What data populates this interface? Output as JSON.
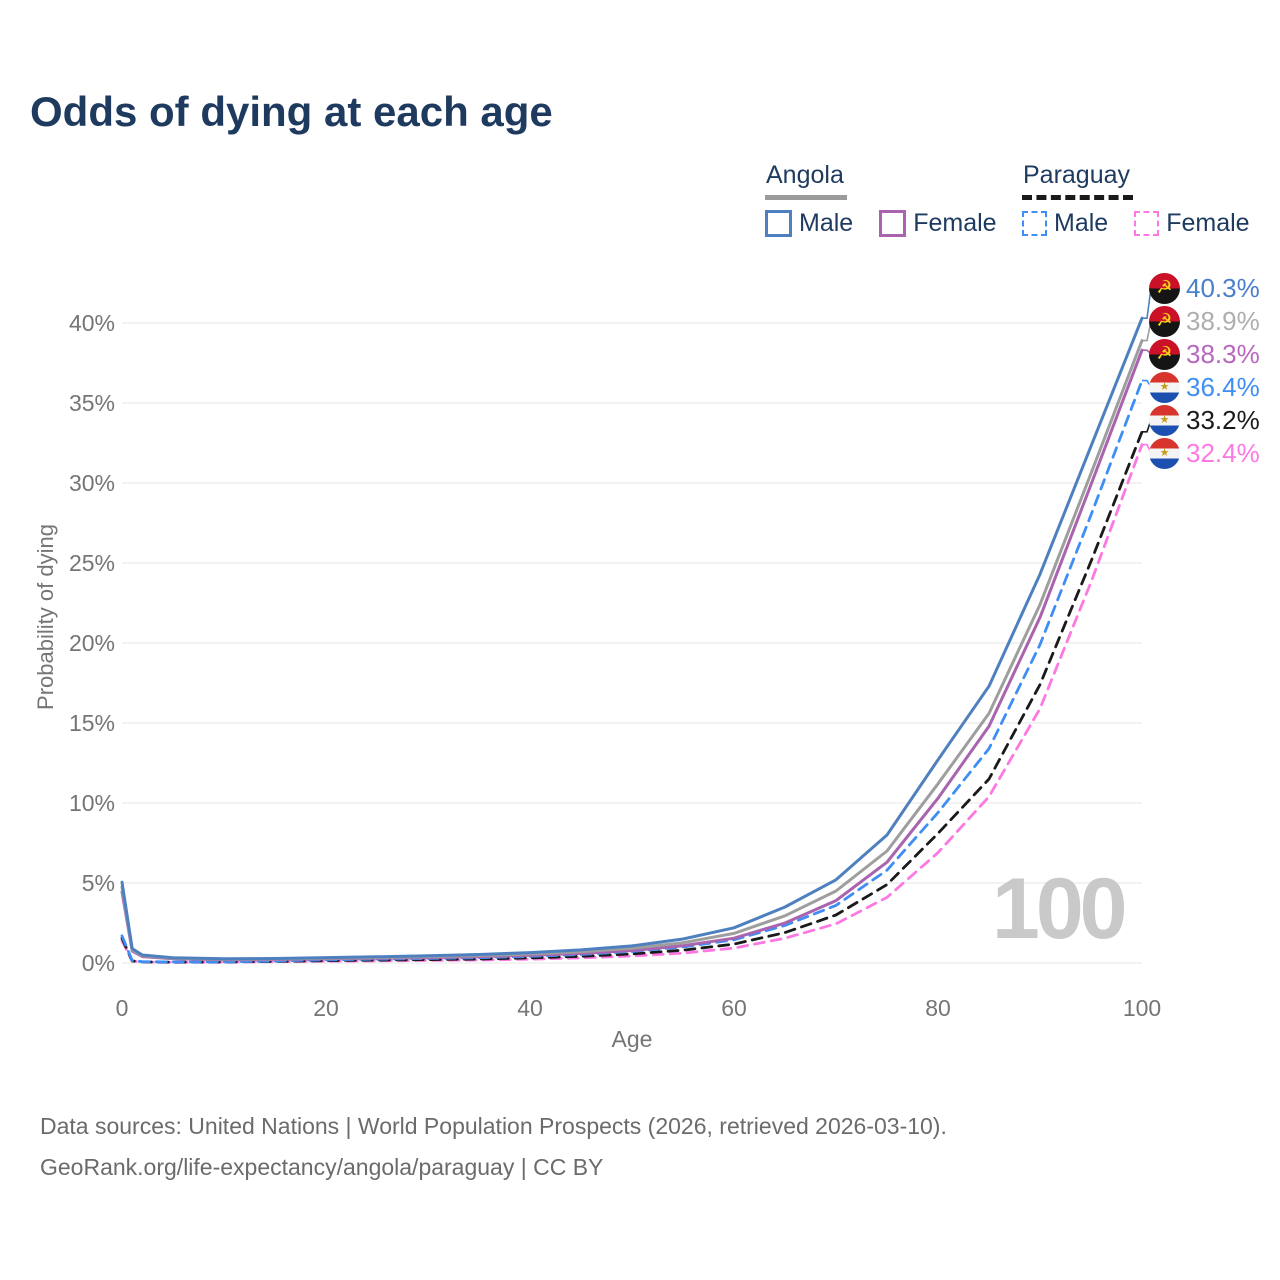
{
  "title": "Odds of dying at each age",
  "watermark": "100",
  "icons": {
    "angola_emblem": "☭",
    "paraguay_emblem": "★"
  },
  "legend": {
    "groups": [
      {
        "label": "Angola",
        "underline_style": "solid",
        "underline_color": "#9b9b9b",
        "items": [
          {
            "label": "Male",
            "color": "#4e80c0",
            "dashed": false
          },
          {
            "label": "Female",
            "color": "#aa63ae",
            "dashed": false
          }
        ]
      },
      {
        "label": "Paraguay",
        "underline_style": "dashed",
        "underline_color": "#1a1a1a",
        "items": [
          {
            "label": "Male",
            "color": "#3e8ef5",
            "dashed": true
          },
          {
            "label": "Female",
            "color": "#fc78e2",
            "dashed": true
          }
        ]
      }
    ]
  },
  "chart_data": {
    "type": "line",
    "title": "Odds of dying at each age",
    "xlabel": "Age",
    "ylabel": "Probability of dying",
    "xlim": [
      0,
      100
    ],
    "ylim": [
      0,
      42
    ],
    "x_ticks": [
      0,
      20,
      40,
      60,
      80,
      100
    ],
    "y_ticks": [
      0,
      5,
      10,
      15,
      20,
      25,
      30,
      35,
      40
    ],
    "y_tick_suffix": "%",
    "grid": "horizontal",
    "legend_position": "top-right",
    "x": [
      0,
      1,
      2,
      5,
      10,
      15,
      20,
      25,
      30,
      35,
      40,
      45,
      50,
      55,
      60,
      65,
      70,
      75,
      80,
      85,
      90,
      95,
      100
    ],
    "series": [
      {
        "name": "Angola — Male",
        "country": "angola",
        "sex": "male",
        "color": "#4e80c0",
        "label_color": "#4a7fc9",
        "dashed": false,
        "end_label": "40.3%",
        "values": [
          5.05,
          0.9,
          0.5,
          0.33,
          0.26,
          0.28,
          0.34,
          0.39,
          0.45,
          0.53,
          0.65,
          0.82,
          1.07,
          1.5,
          2.2,
          3.5,
          5.2,
          8.0,
          12.7,
          17.3,
          24.3,
          32.3,
          40.3
        ]
      },
      {
        "name": "Angola — Both sexes",
        "country": "angola",
        "sex": "both",
        "color": "#9e9e9e",
        "label_color": "#aeaeae",
        "dashed": false,
        "end_label": "38.9%",
        "values": [
          4.75,
          0.8,
          0.45,
          0.3,
          0.23,
          0.25,
          0.3,
          0.34,
          0.39,
          0.46,
          0.56,
          0.7,
          0.92,
          1.27,
          1.85,
          2.95,
          4.5,
          7.0,
          11.2,
          15.6,
          22.4,
          30.6,
          38.9
        ]
      },
      {
        "name": "Angola — Female",
        "country": "angola",
        "sex": "female",
        "color": "#aa63ae",
        "label_color": "#b767bd",
        "dashed": false,
        "end_label": "38.3%",
        "values": [
          4.45,
          0.75,
          0.4,
          0.27,
          0.2,
          0.22,
          0.26,
          0.3,
          0.34,
          0.4,
          0.48,
          0.6,
          0.78,
          1.08,
          1.55,
          2.5,
          3.9,
          6.3,
          10.3,
          14.8,
          21.6,
          29.9,
          38.3
        ]
      },
      {
        "name": "Paraguay — Male",
        "country": "paraguay",
        "sex": "male",
        "color": "#3e8ef5",
        "label_color": "#3e8ef5",
        "dashed": true,
        "end_label": "36.4%",
        "values": [
          1.7,
          0.15,
          0.08,
          0.06,
          0.07,
          0.12,
          0.2,
          0.24,
          0.28,
          0.33,
          0.41,
          0.53,
          0.72,
          1.0,
          1.45,
          2.35,
          3.6,
          5.8,
          9.4,
          13.4,
          19.9,
          28.0,
          36.4
        ]
      },
      {
        "name": "Paraguay — Both sexes",
        "country": "paraguay",
        "sex": "both",
        "color": "#1a1a1a",
        "label_color": "#1a1a1a",
        "dashed": true,
        "end_label": "33.2%",
        "values": [
          1.55,
          0.13,
          0.07,
          0.05,
          0.06,
          0.1,
          0.15,
          0.18,
          0.21,
          0.25,
          0.32,
          0.42,
          0.57,
          0.8,
          1.18,
          1.9,
          3.0,
          4.9,
          8.1,
          11.5,
          17.4,
          25.1,
          33.2
        ]
      },
      {
        "name": "Paraguay — Female",
        "country": "paraguay",
        "sex": "female",
        "color": "#fc78e2",
        "label_color": "#fc78e2",
        "dashed": true,
        "end_label": "32.4%",
        "values": [
          1.4,
          0.12,
          0.06,
          0.045,
          0.05,
          0.08,
          0.11,
          0.13,
          0.16,
          0.19,
          0.24,
          0.32,
          0.44,
          0.62,
          0.93,
          1.55,
          2.45,
          4.1,
          6.9,
          10.4,
          15.9,
          23.8,
          32.4
        ]
      }
    ]
  },
  "footer": {
    "line1": "Data sources: United Nations | World Population Prospects (2026, retrieved 2026-03-10).",
    "line2": "GeoRank.org/life-expectancy/angola/paraguay | CC BY"
  }
}
